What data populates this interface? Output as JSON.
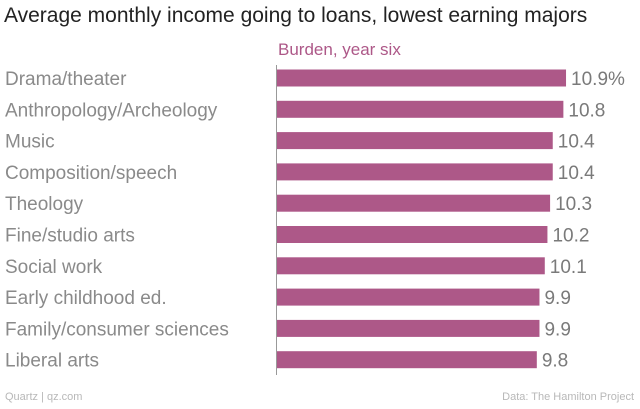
{
  "title": "Average monthly income going to loans, lowest earning majors",
  "footer": {
    "left": "Quartz | qz.com",
    "right": "Data: The Hamilton Project"
  },
  "colors": {
    "bar": "#ad5888",
    "legend": "#ad5888",
    "axis": "#999999"
  },
  "chart_data": {
    "type": "bar",
    "orientation": "horizontal",
    "title": "Average monthly income going to loans, lowest earning majors",
    "xlabel": "",
    "ylabel": "",
    "xlim": [
      0,
      11.2
    ],
    "categories": [
      "Drama/theater",
      "Anthropology/Archeology",
      "Music",
      "Composition/speech",
      "Theology",
      "Fine/studio arts",
      "Social work",
      "Early childhood ed.",
      "Family/consumer sciences",
      "Liberal arts"
    ],
    "series": [
      {
        "name": "Burden, year six",
        "values": [
          10.9,
          10.8,
          10.4,
          10.4,
          10.3,
          10.2,
          10.1,
          9.9,
          9.9,
          9.8
        ],
        "labels": [
          "10.9%",
          "10.8",
          "10.4",
          "10.4",
          "10.3",
          "10.2",
          "10.1",
          "9.9",
          "9.9",
          "9.8"
        ]
      }
    ],
    "legend_position": "top"
  }
}
